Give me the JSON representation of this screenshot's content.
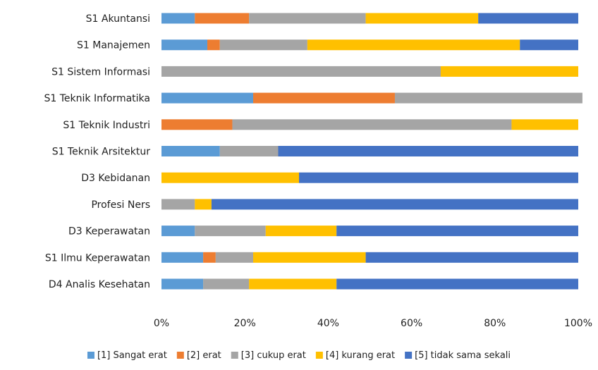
{
  "chart_data": {
    "type": "bar",
    "orientation": "horizontal",
    "stacked": "percent",
    "categories": [
      "S1 Akuntansi",
      "S1 Manajemen",
      "S1 Sistem Informasi",
      "S1 Teknik Informatika",
      "S1 Teknik Industri",
      "S1 Teknik Arsitektur",
      "D3 Kebidanan",
      "Profesi Ners",
      "D3 Keperawatan",
      "S1 Ilmu Keperawatan",
      "D4 Analis Kesehatan"
    ],
    "series": [
      {
        "name": "[1] Sangat erat",
        "color": "#5b9bd5",
        "values": [
          8,
          11,
          0,
          22,
          0,
          14,
          0,
          0,
          8,
          10,
          10
        ]
      },
      {
        "name": "[2] erat",
        "color": "#ed7d31",
        "values": [
          13,
          3,
          0,
          34,
          17,
          0,
          0,
          0,
          0,
          3,
          0
        ]
      },
      {
        "name": "[3] cukup erat",
        "color": "#a5a5a5",
        "values": [
          28,
          21,
          67,
          45,
          67,
          14,
          0,
          8,
          17,
          9,
          11
        ]
      },
      {
        "name": "[4] kurang erat",
        "color": "#ffc000",
        "values": [
          27,
          51,
          33,
          0,
          16,
          0,
          33,
          4,
          17,
          27,
          21
        ]
      },
      {
        "name": "[5] tidak sama sekali",
        "color": "#4472c4",
        "values": [
          24,
          14,
          0,
          0,
          0,
          72,
          67,
          88,
          58,
          51,
          58
        ]
      }
    ],
    "x_ticks": [
      "0%",
      "20%",
      "40%",
      "60%",
      "80%",
      "100%"
    ],
    "xlim": [
      0,
      100
    ],
    "grid": false,
    "legend_position": "bottom"
  }
}
